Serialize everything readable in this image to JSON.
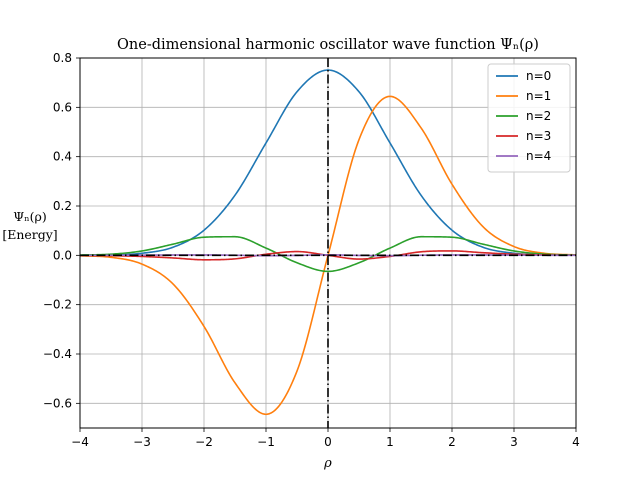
{
  "chart_data": {
    "type": "line",
    "title": "One-dimensional harmonic oscillator wave function Ψₙ(ρ)",
    "xlabel": "ρ",
    "ylabel_line1": "Ψₙ(ρ)",
    "ylabel_line2": "[Energy]",
    "xlim": [
      -4,
      4
    ],
    "ylim": [
      -0.7,
      0.8
    ],
    "xticks": [
      -4,
      -3,
      -2,
      -1,
      0,
      1,
      2,
      3,
      4
    ],
    "xtick_labels": [
      "−4",
      "−3",
      "−2",
      "−1",
      "0",
      "1",
      "2",
      "3",
      "4"
    ],
    "yticks": [
      -0.6,
      -0.4,
      -0.2,
      0.0,
      0.2,
      0.4,
      0.6,
      0.8
    ],
    "ytick_labels": [
      "−0.6",
      "−0.4",
      "−0.2",
      "0.0",
      "0.2",
      "0.4",
      "0.6",
      "0.8"
    ],
    "grid": true,
    "legend_position": "top-right",
    "reference_lines": [
      {
        "orientation": "vertical",
        "x": 0,
        "style": "dash-dot",
        "color": "#000000"
      },
      {
        "orientation": "horizontal",
        "y": 0,
        "style": "dash-dot",
        "color": "#000000"
      }
    ],
    "x": [
      -4.0,
      -3.5,
      -3.0,
      -2.5,
      -2.0,
      -1.5,
      -1.0,
      -0.5,
      0.0,
      0.5,
      1.0,
      1.5,
      2.0,
      2.5,
      3.0,
      3.5,
      4.0
    ],
    "series": [
      {
        "name": "n=0",
        "color": "#1f77b4",
        "values": [
          0.0003,
          0.0016,
          0.0084,
          0.0328,
          0.1019,
          0.2437,
          0.4556,
          0.6632,
          0.7511,
          0.6632,
          0.4556,
          0.2437,
          0.1019,
          0.0328,
          0.0084,
          0.0016,
          0.0003
        ]
      },
      {
        "name": "n=1",
        "color": "#ff7f0e",
        "values": [
          -0.0019,
          -0.008,
          -0.0356,
          -0.116,
          -0.2882,
          -0.517,
          -0.6444,
          -0.469,
          0.0,
          0.469,
          0.6444,
          0.517,
          0.2882,
          0.116,
          0.0356,
          0.008,
          0.0019
        ]
      },
      {
        "name": "n=2",
        "color": "#2ca02c",
        "values": [
          0.0012,
          0.0046,
          0.0177,
          0.0452,
          0.0735,
          0.0754,
          0.0294,
          -0.0302,
          -0.065,
          -0.0302,
          0.0294,
          0.0754,
          0.0735,
          0.0452,
          0.0177,
          0.0046,
          0.0012
        ]
      },
      {
        "name": "n=3",
        "color": "#d62728",
        "values": [
          -0.0005,
          -0.0015,
          -0.0046,
          -0.0106,
          -0.018,
          -0.0143,
          0.0044,
          0.0152,
          0.0,
          -0.0152,
          -0.0044,
          0.0143,
          0.018,
          0.0106,
          0.0046,
          0.0015,
          0.0005
        ]
      },
      {
        "name": "n=4",
        "color": "#9467bd",
        "values": [
          0.0001,
          0.0003,
          0.0008,
          0.0016,
          0.0018,
          0.0004,
          -0.0015,
          -0.0003,
          0.0021,
          -0.0003,
          -0.0015,
          0.0004,
          0.0018,
          0.0016,
          0.0008,
          0.0003,
          0.0001
        ]
      }
    ]
  }
}
